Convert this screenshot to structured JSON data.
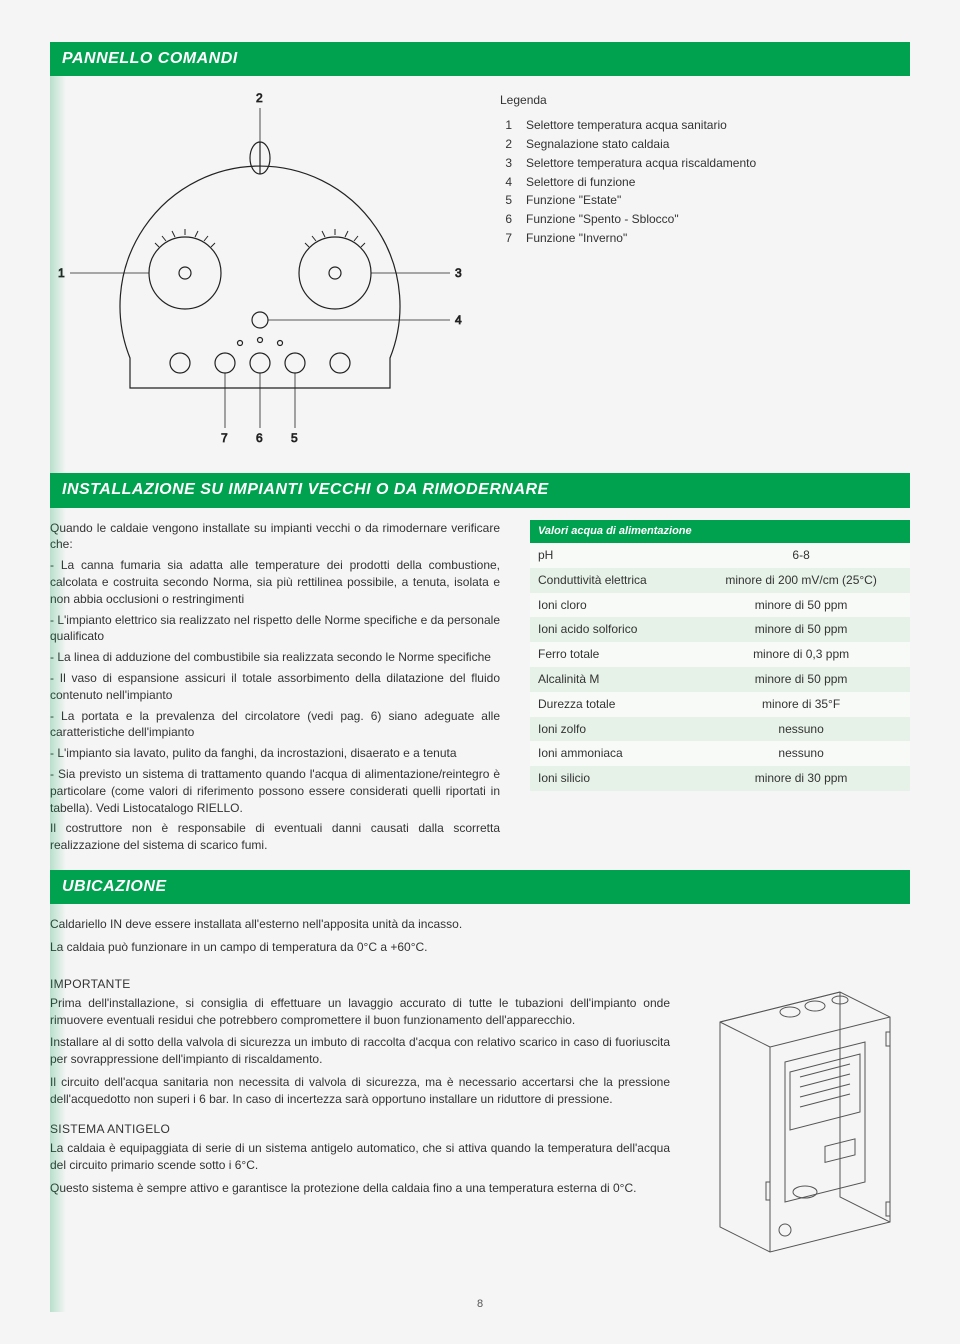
{
  "colors": {
    "accent": "#00a14f",
    "row_alt": "#e6f2e8",
    "row_base": "#f7faf7"
  },
  "sections": {
    "panel": {
      "title": "PANNELLO COMANDI",
      "legend_title": "Legenda",
      "items": [
        {
          "n": "1",
          "t": "Selettore temperatura acqua sanitario"
        },
        {
          "n": "2",
          "t": "Segnalazione stato caldaia"
        },
        {
          "n": "3",
          "t": "Selettore temperatura acqua riscaldamento"
        },
        {
          "n": "4",
          "t": "Selettore di funzione"
        },
        {
          "n": "5",
          "t": "Funzione \"Estate\""
        },
        {
          "n": "6",
          "t": "Funzione \"Spento - Sblocco\""
        },
        {
          "n": "7",
          "t": "Funzione \"Inverno\""
        }
      ],
      "callouts": [
        "1",
        "2",
        "3",
        "4",
        "5",
        "6",
        "7"
      ]
    },
    "install": {
      "title": "INSTALLAZIONE SU IMPIANTI VECCHI O DA RIMODERNARE",
      "intro": "Quando le caldaie vengono installate su impianti vecchi o da rimodernare verificare che:",
      "bullets": [
        "- La canna fumaria sia adatta alle temperature dei prodotti della combustione, calcolata e costruita secondo Norma, sia più rettilinea possibile, a tenuta, isolata e non abbia occlusioni o restringimenti",
        "- L'impianto elettrico sia realizzato nel rispetto delle Norme specifiche e da personale qualificato",
        "- La linea di adduzione del combustibile sia realizzata secondo le Norme specifiche",
        "- Il vaso di espansione assicuri il totale assorbimento della dilatazione del fluido contenuto nell'impianto",
        "- La portata e la prevalenza del circolatore (vedi pag. 6) siano adeguate alle caratteristiche dell'impianto",
        "- L'impianto sia lavato, pulito da fanghi, da incrostazioni, disaerato e a tenuta",
        "- Sia previsto un sistema di trattamento quando l'acqua di alimentazione/reintegro è particolare (come valori di riferimento possono essere considerati quelli riportati in tabella). Vedi Listocatalogo RIELLO."
      ],
      "outro": "Il costruttore non è responsabile di eventuali danni causati dalla scorretta realizzazione del sistema di scarico fumi.",
      "table_header": "Valori acqua di alimentazione",
      "rows": [
        {
          "k": "pH",
          "v": "6-8"
        },
        {
          "k": "Conduttività elettrica",
          "v": "minore di 200 mV/cm (25°C)"
        },
        {
          "k": "Ioni cloro",
          "v": "minore di 50 ppm"
        },
        {
          "k": "Ioni acido solforico",
          "v": "minore di 50 ppm"
        },
        {
          "k": "Ferro totale",
          "v": "minore di 0,3 ppm"
        },
        {
          "k": "Alcalinità M",
          "v": "minore di 50 ppm"
        },
        {
          "k": "Durezza totale",
          "v": "minore di 35°F"
        },
        {
          "k": "Ioni zolfo",
          "v": "nessuno"
        },
        {
          "k": "Ioni ammoniaca",
          "v": "nessuno"
        },
        {
          "k": "Ioni silicio",
          "v": "minore di 30 ppm"
        }
      ]
    },
    "ubic": {
      "title": "UBICAZIONE",
      "p1": "Caldariello IN deve essere installata all'esterno nell'apposita unità da incasso.",
      "p2": "La caldaia può funzionare in un campo di temperatura da 0°C a +60°C.",
      "h_imp": "IMPORTANTE",
      "imp1": "Prima dell'installazione, si consiglia di effettuare un lavaggio accurato di tutte le tubazioni dell'impianto onde rimuovere eventuali residui che potrebbero compromettere il buon funzionamento dell'apparecchio.",
      "imp2": "Installare al di sotto della valvola di sicurezza un imbuto di raccolta d'acqua con relativo scarico in caso di fuoriuscita per sovrappressione dell'impianto di riscaldamento.",
      "imp3": "Il circuito dell'acqua sanitaria non necessita di valvola di sicurezza, ma è necessario accertarsi che la pressione dell'acquedotto non superi i 6 bar. In caso di incertezza sarà opportuno installare un riduttore di pressione.",
      "h_anti": "SISTEMA ANTIGELO",
      "anti1": "La caldaia è equipaggiata di serie di un sistema antigelo automatico, che si attiva quando la temperatura dell'acqua del circuito primario scende sotto i 6°C.",
      "anti2": "Questo sistema è sempre attivo e garantisce la protezione della caldaia fino a una temperatura esterna di 0°C."
    }
  },
  "page_number": "8"
}
